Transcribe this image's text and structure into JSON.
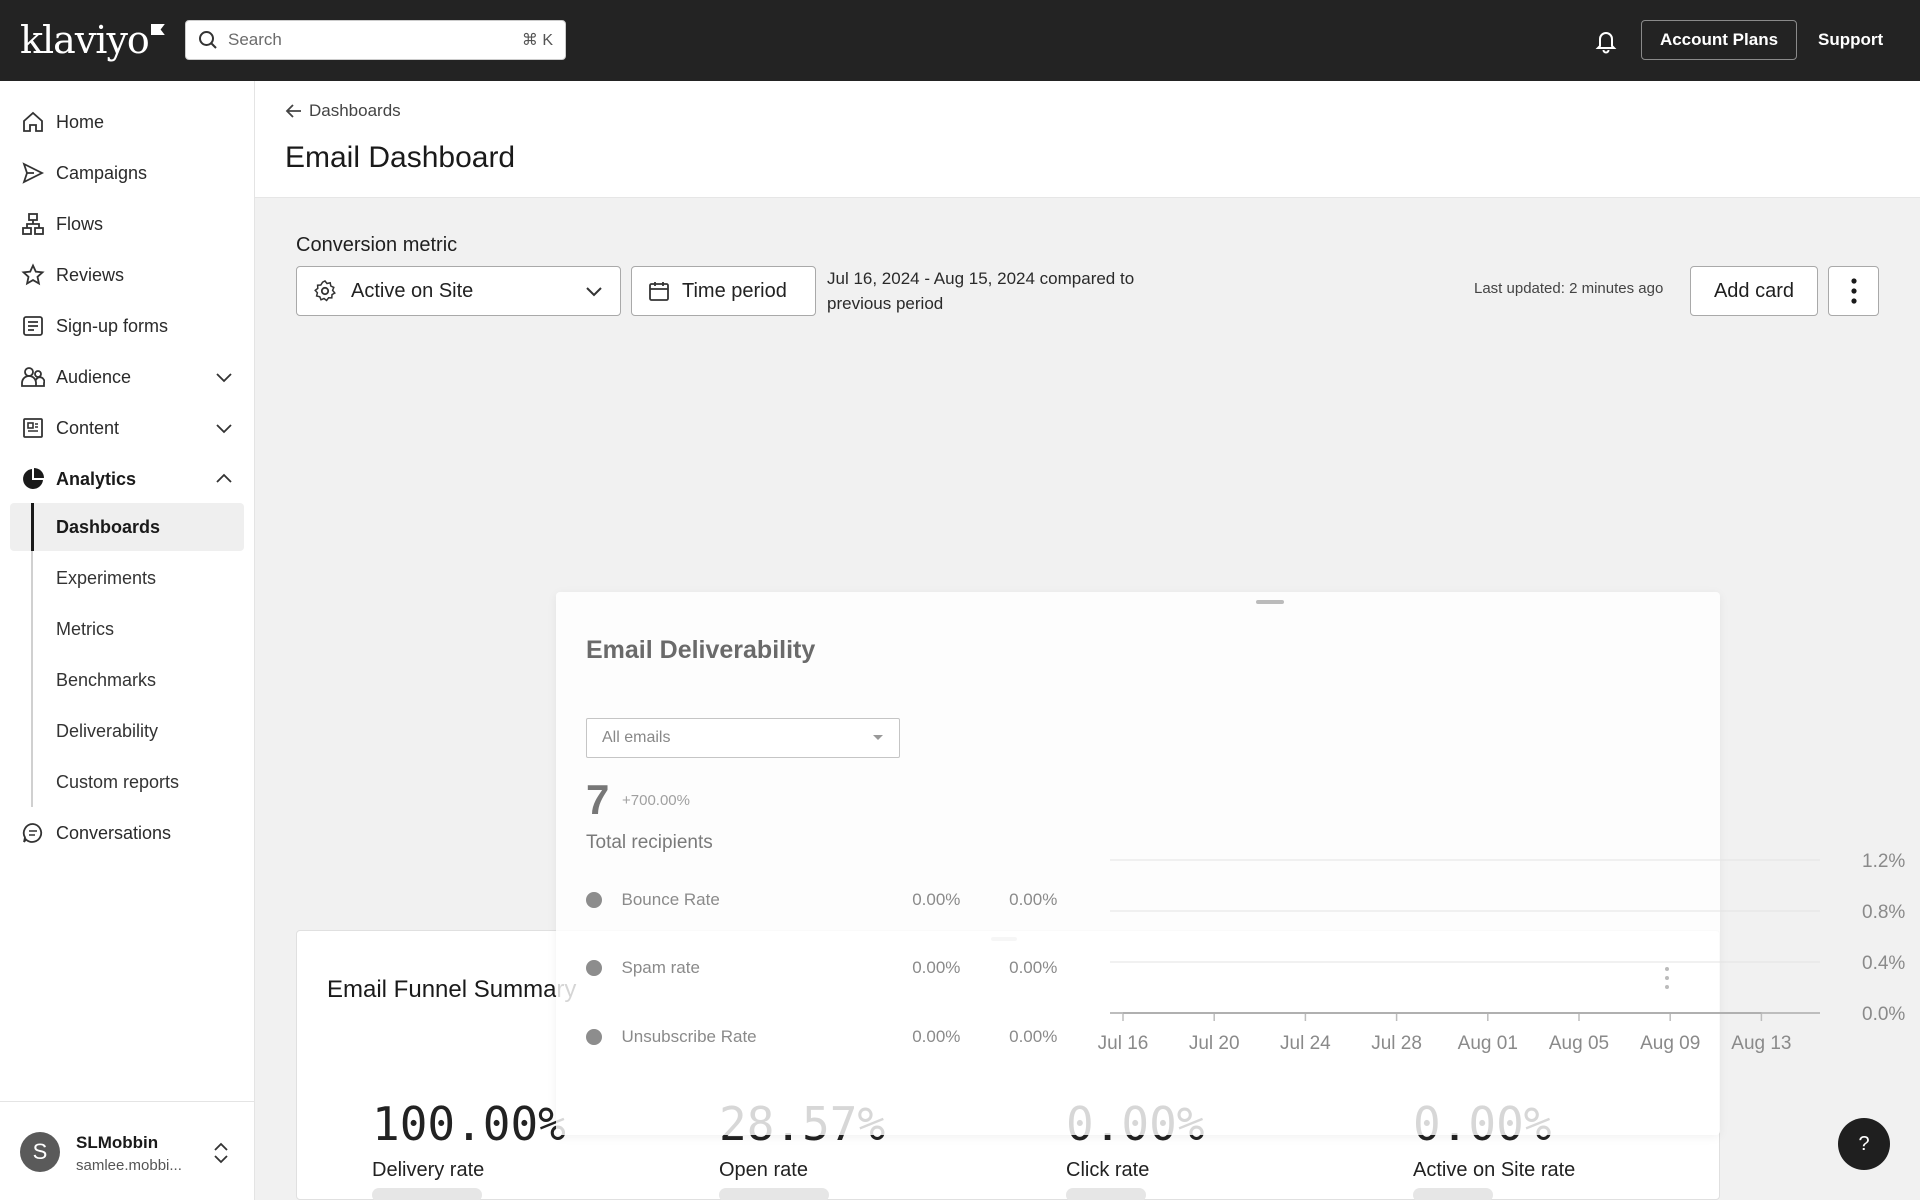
{
  "app": {
    "logo": "klaviyo"
  },
  "topbar": {
    "search_placeholder": "Search",
    "search_shortcut": "⌘ K",
    "account_plans": "Account Plans",
    "support": "Support"
  },
  "sidebar": {
    "items": [
      {
        "label": "Home",
        "icon": "home-icon"
      },
      {
        "label": "Campaigns",
        "icon": "send-icon"
      },
      {
        "label": "Flows",
        "icon": "flows-icon"
      },
      {
        "label": "Reviews",
        "icon": "star-icon"
      },
      {
        "label": "Sign-up forms",
        "icon": "form-icon"
      },
      {
        "label": "Audience",
        "icon": "people-icon"
      },
      {
        "label": "Content",
        "icon": "content-icon"
      },
      {
        "label": "Analytics",
        "icon": "pie-chart-icon"
      }
    ],
    "analytics_sub": [
      "Dashboards",
      "Experiments",
      "Metrics",
      "Benchmarks",
      "Deliverability",
      "Custom reports"
    ],
    "conversations": "Conversations",
    "user": {
      "initial": "S",
      "name": "SLMobbin",
      "email": "samlee.mobbi..."
    }
  },
  "header": {
    "breadcrumb": "Dashboards",
    "title": "Email Dashboard"
  },
  "controls": {
    "conversion_label": "Conversion metric",
    "conversion_value": "Active on Site",
    "time_period": "Time period",
    "date_range": "Jul 16, 2024 - Aug 15, 2024 compared to previous period",
    "last_updated": "Last updated: 2 minutes ago",
    "add_card": "Add card"
  },
  "deliverability": {
    "title": "Email Deliverability",
    "filter": "All emails",
    "total": "7",
    "delta": "+700.00%",
    "total_label": "Total recipients",
    "rows": [
      {
        "name": "Bounce Rate",
        "v1": "0.00%",
        "v2": "0.00%"
      },
      {
        "name": "Spam rate",
        "v1": "0.00%",
        "v2": "0.00%"
      },
      {
        "name": "Unsubscribe Rate",
        "v1": "0.00%",
        "v2": "0.00%"
      }
    ]
  },
  "chart_data": {
    "type": "line",
    "x": [
      "Jul 16",
      "Jul 20",
      "Jul 24",
      "Jul 28",
      "Aug 01",
      "Aug 05",
      "Aug 09",
      "Aug 13"
    ],
    "y_ticks": [
      "1.2%",
      "0.8%",
      "0.4%",
      "0.0%"
    ],
    "ylim": [
      0,
      1.2
    ],
    "series": [
      {
        "values": [
          0,
          0,
          0,
          0,
          0,
          0,
          0,
          0
        ]
      }
    ],
    "grid": true
  },
  "funnel": {
    "title": "Email Funnel Summary",
    "stats": [
      {
        "value": "100.00%",
        "label": "Delivery rate"
      },
      {
        "value": "28.57%",
        "label": "Open rate"
      },
      {
        "value": "0.00%",
        "label": "Click rate"
      },
      {
        "value": "0.00%",
        "label": "Active on Site rate"
      }
    ]
  },
  "help": "?"
}
